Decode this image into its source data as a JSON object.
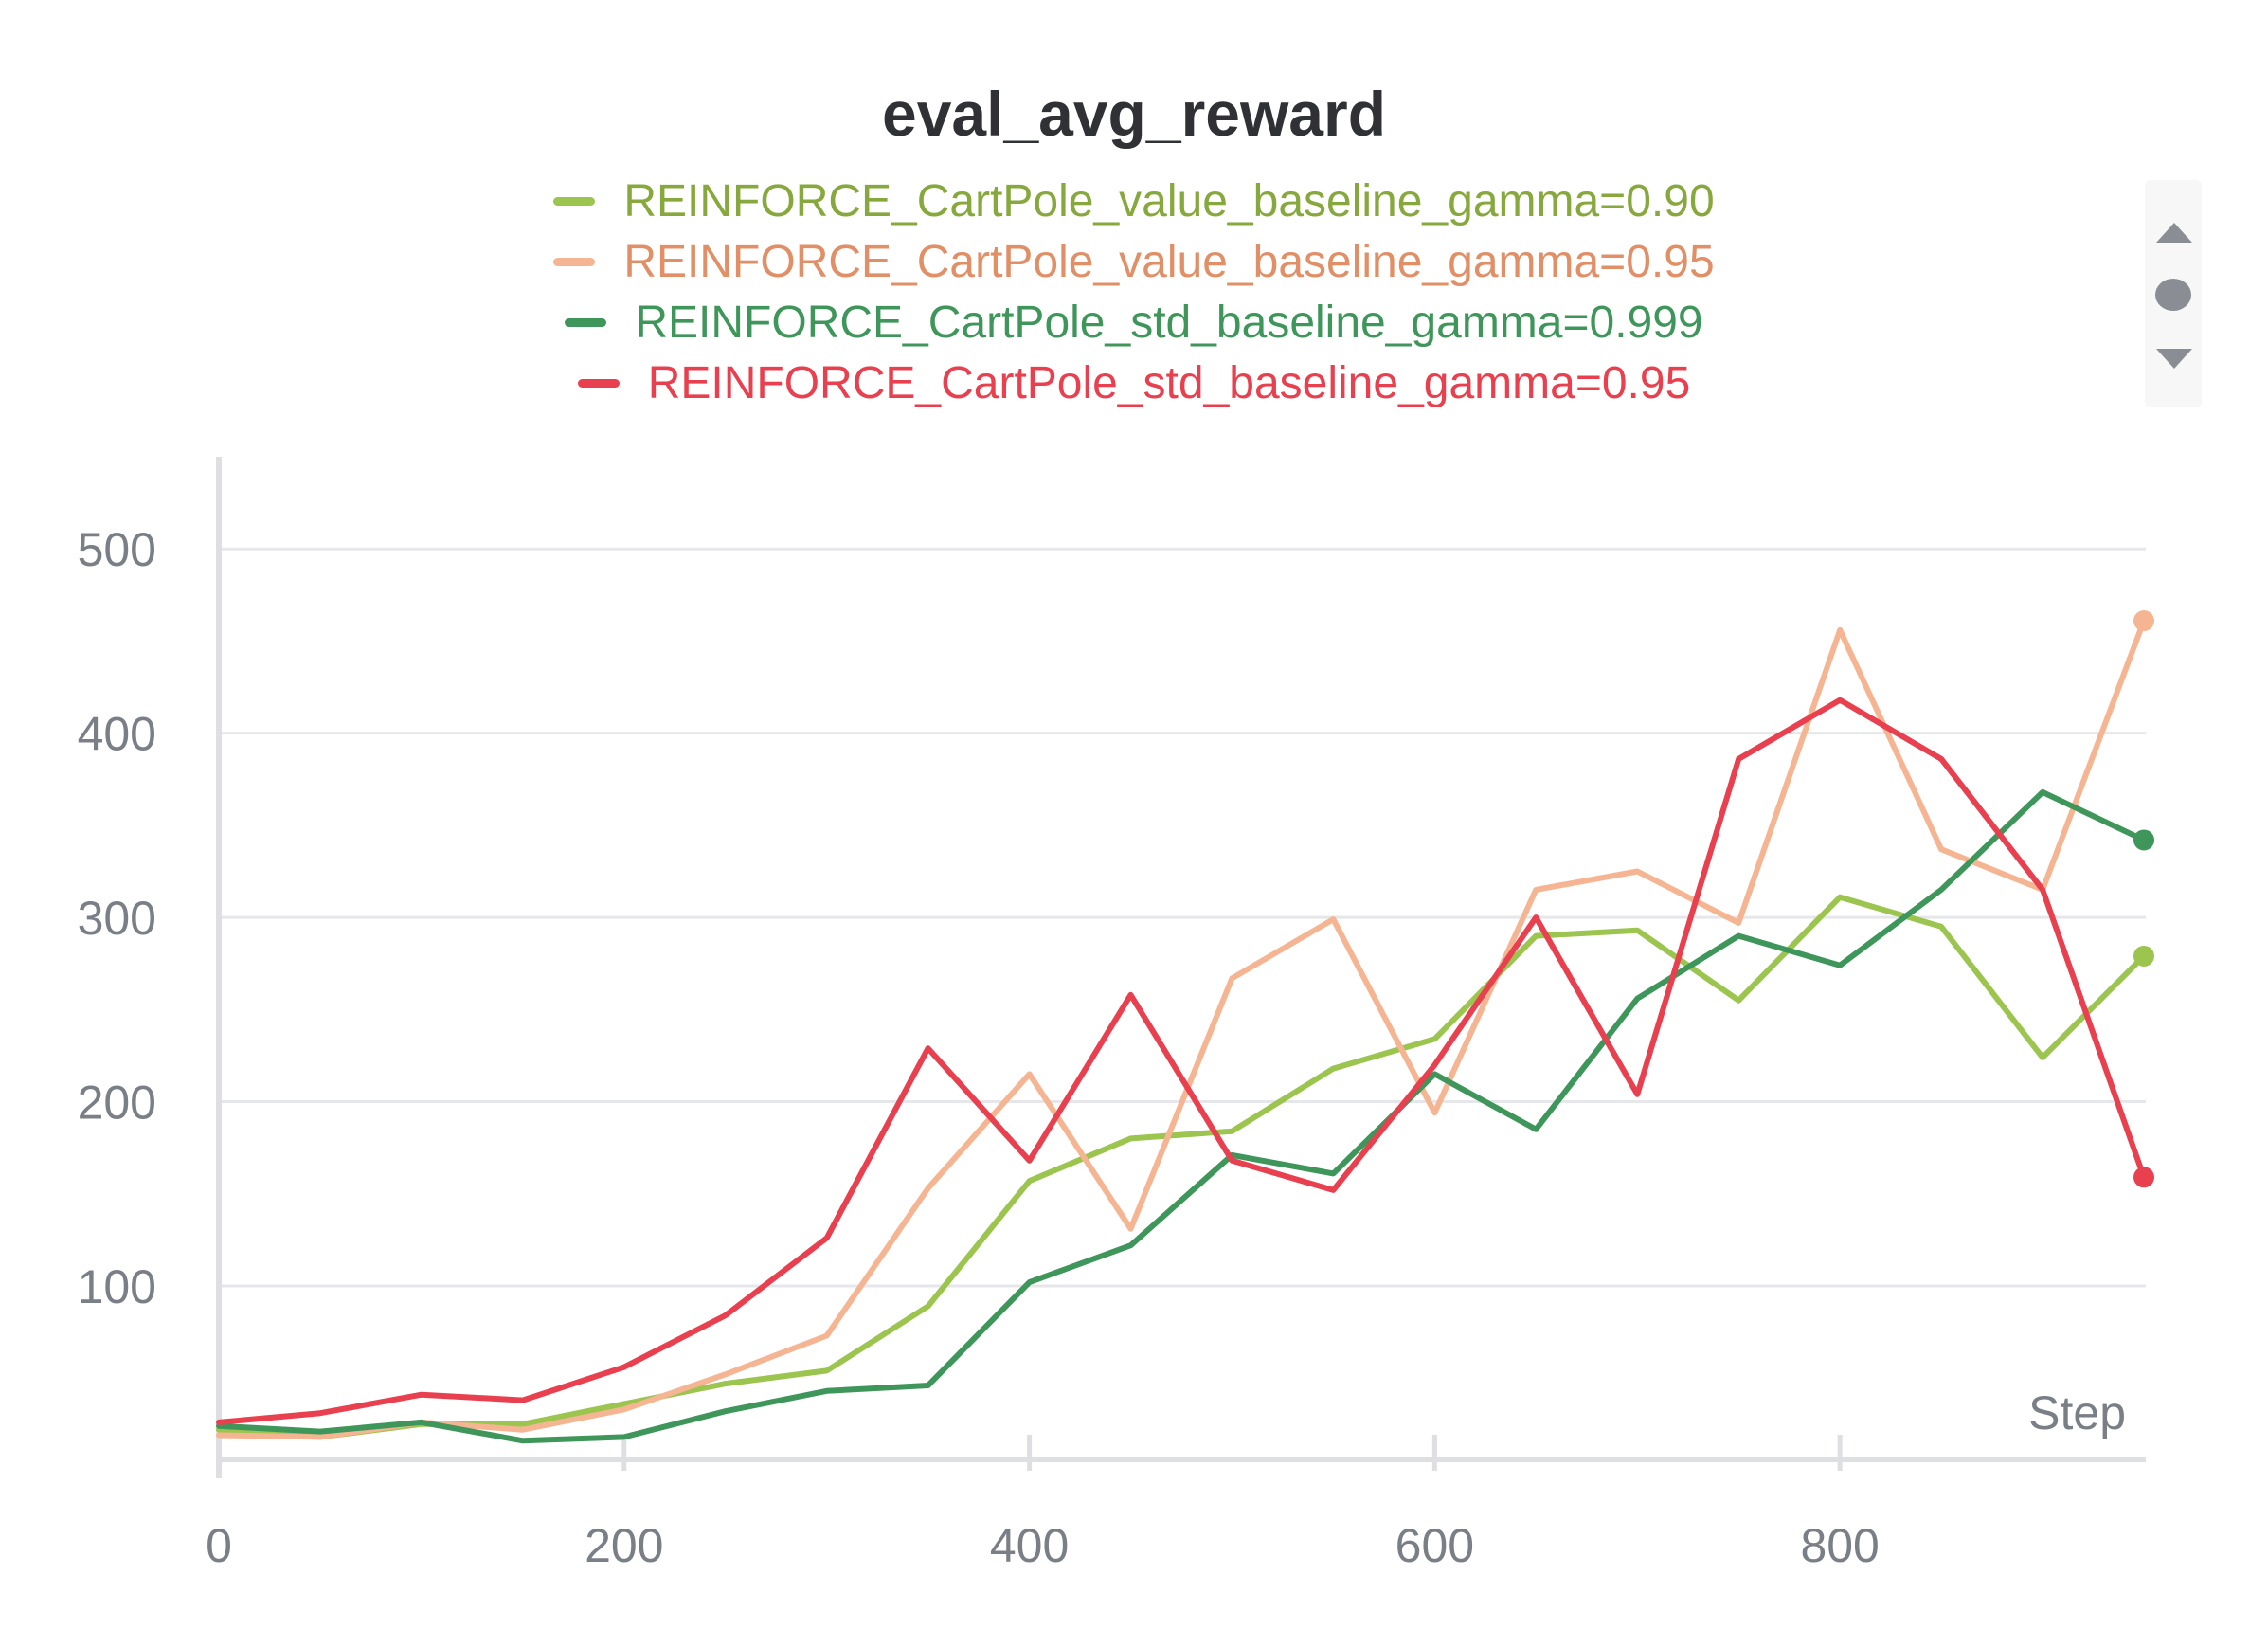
{
  "chart_data": {
    "type": "line",
    "title": "eval_avg_reward",
    "xlabel": "Step",
    "ylabel": "",
    "xlim": [
      0,
      950
    ],
    "ylim": [
      10,
      550
    ],
    "x_ticks": [
      "0",
      "200",
      "400",
      "600",
      "800"
    ],
    "y_ticks": [
      "100",
      "200",
      "300",
      "400",
      "500"
    ],
    "grid": true,
    "legend_position": "top",
    "x": [
      0,
      50,
      100,
      150,
      200,
      250,
      300,
      350,
      400,
      450,
      500,
      550,
      600,
      650,
      700,
      750,
      800,
      850,
      900,
      950
    ],
    "series": [
      {
        "name": "REINFORCE_CartPole_value_baseline_gamma=0.90",
        "color": "#9bc54e",
        "text_color": "#86a83c",
        "values": [
          22,
          18,
          25,
          25,
          36,
          47,
          54,
          89,
          157,
          180,
          184,
          218,
          234,
          290,
          293,
          255,
          311,
          295,
          224,
          279
        ]
      },
      {
        "name": "REINFORCE_CartPole_value_baseline_gamma=0.95",
        "color": "#f6b592",
        "text_color": "#e08f66",
        "values": [
          19,
          18,
          26,
          22,
          33,
          52,
          73,
          153,
          215,
          131,
          267,
          299,
          194,
          315,
          325,
          297,
          456,
          337,
          315,
          461
        ]
      },
      {
        "name": "REINFORCE_CartPole_std_baseline_gamma=0.999",
        "color": "#3f965a",
        "text_color": "#3f965a",
        "values": [
          24,
          21,
          26,
          16,
          18,
          32,
          43,
          46,
          102,
          122,
          171,
          161,
          215,
          185,
          256,
          290,
          274,
          315,
          368,
          342
        ]
      },
      {
        "name": "REINFORCE_CartPole_std_baseline_gamma=0.95",
        "color": "#e8404f",
        "text_color": "#e8404f",
        "values": [
          26,
          31,
          41,
          38,
          56,
          84,
          126,
          229,
          168,
          258,
          168,
          152,
          220,
          300,
          204,
          386,
          418,
          386,
          315,
          159
        ]
      }
    ]
  }
}
